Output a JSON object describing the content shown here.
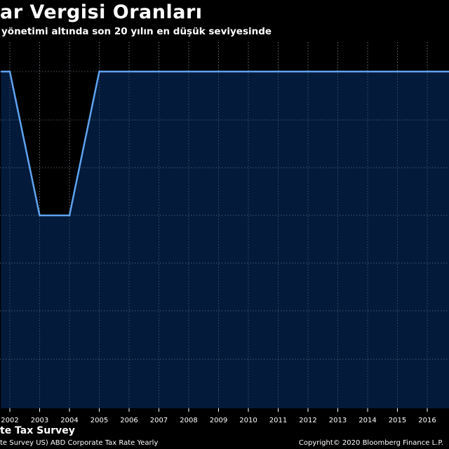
{
  "header": {
    "title": "ar Vergisi Oranları",
    "subtitle": "yönetimi altında son 20 yılın en düşük seviyesinde"
  },
  "footer": {
    "source_title": "te Tax Survey",
    "source_detail": "te Survey US) ABD Corporate Tax Rate  Yearly",
    "copyright": "Copyright© 2020 Bloomberg Finance L.P."
  },
  "colors": {
    "background": "#000000",
    "plot_fill": "#031a3a",
    "line": "#5fa3f0",
    "grid": "#8a96a8"
  },
  "chart_data": {
    "type": "line",
    "title": "ar Vergisi Oranları",
    "subtitle": "yönetimi altında son 20 yılın en düşük seviyesinde",
    "xlabel": "",
    "ylabel": "",
    "x_ticks": [
      "2002",
      "2003",
      "2004",
      "2005",
      "2006",
      "2007",
      "2008",
      "2009",
      "2010",
      "2011",
      "2012",
      "2013",
      "2014",
      "2015",
      "2016"
    ],
    "xlim": [
      2001.7,
      2017.5
    ],
    "y_gridlines": 8,
    "grid": true,
    "legend": "none",
    "series": [
      {
        "points": [
          [
            2001.7,
            1.0
          ],
          [
            2002.0,
            1.0
          ],
          [
            2003.0,
            0.0
          ],
          [
            2004.0,
            0.0
          ],
          [
            2005.0,
            1.0
          ],
          [
            2006.0,
            1.0
          ],
          [
            2007.0,
            1.0
          ],
          [
            2008.0,
            1.0
          ],
          [
            2009.0,
            1.0
          ],
          [
            2010.0,
            1.0
          ],
          [
            2011.0,
            1.0
          ],
          [
            2012.0,
            1.0
          ],
          [
            2013.0,
            1.0
          ],
          [
            2014.0,
            1.0
          ],
          [
            2015.0,
            1.0
          ],
          [
            2016.0,
            1.0
          ],
          [
            2017.5,
            1.0
          ]
        ]
      }
    ]
  }
}
